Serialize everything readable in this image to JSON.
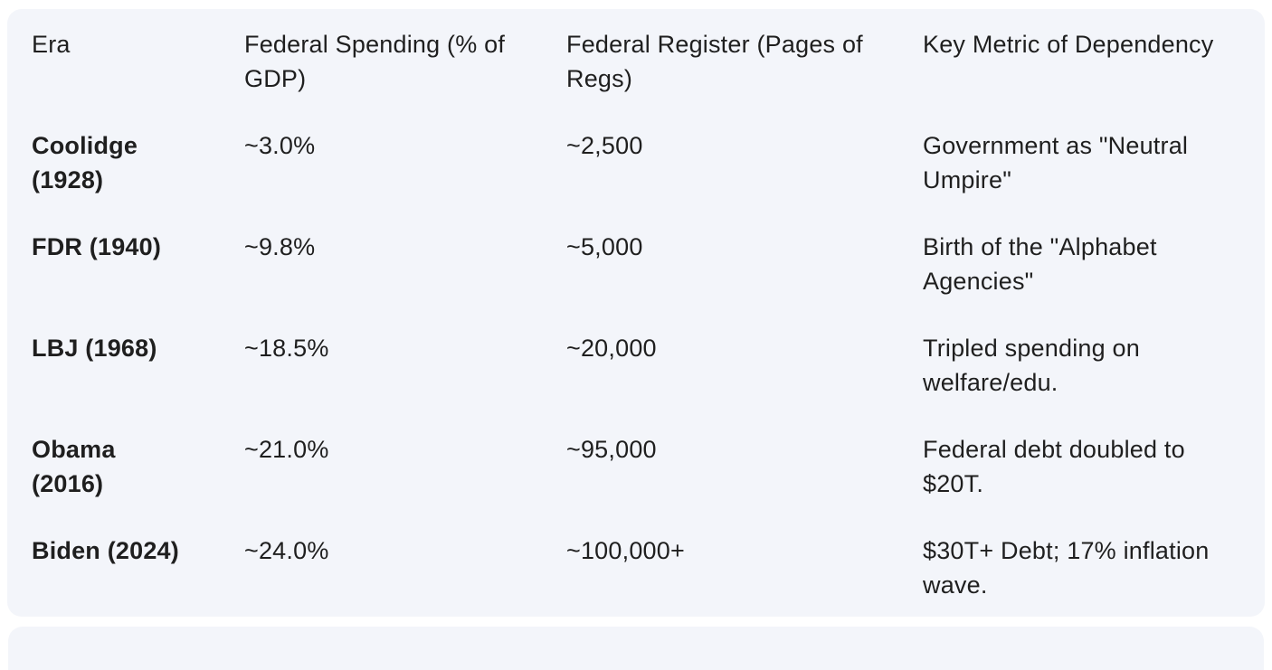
{
  "colors": {
    "page_bg": "#ffffff",
    "card_bg": "#f3f5fa",
    "text": "#1f1f1f"
  },
  "table": {
    "headers": [
      "Era",
      "Federal Spending (% of\nGDP)",
      "Federal Register (Pages of\nRegs)",
      "Key Metric of Dependency"
    ],
    "rows": [
      {
        "era": "Coolidge\n(1928)",
        "spending": "~3.0%",
        "register": "~2,500",
        "metric": "Government as \"Neutral\nUmpire\""
      },
      {
        "era": "FDR (1940)",
        "spending": "~9.8%",
        "register": "~5,000",
        "metric": "Birth of the \"Alphabet\nAgencies\""
      },
      {
        "era": "LBJ (1968)",
        "spending": "~18.5%",
        "register": "~20,000",
        "metric": "Tripled spending on\nwelfare/edu."
      },
      {
        "era": "Obama\n(2016)",
        "spending": "~21.0%",
        "register": "~95,000",
        "metric": "Federal debt doubled to\n$20T."
      },
      {
        "era": "Biden (2024)",
        "spending": "~24.0%",
        "register": "~100,000+",
        "metric": "$30T+ Debt; 17% inflation\nwave."
      }
    ]
  }
}
